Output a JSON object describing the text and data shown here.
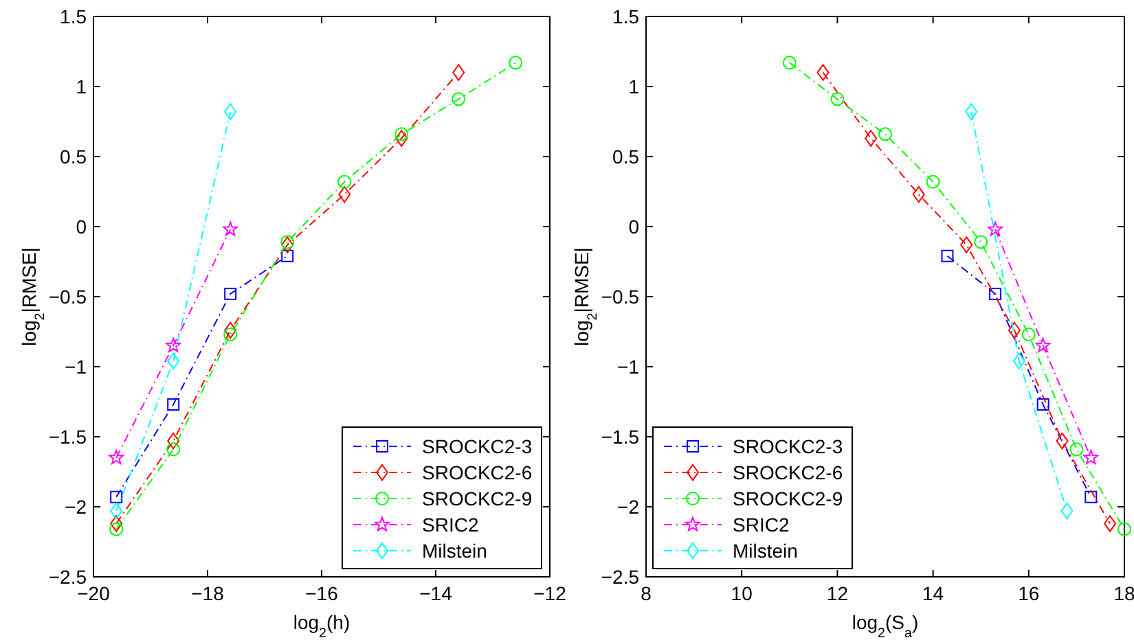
{
  "chart_data": [
    {
      "type": "line",
      "xlabel": "log$_{2}$(h)",
      "ylabel": "log$_{2}$|RMSE|",
      "xlim": [
        -20,
        -12
      ],
      "xticks": [
        -20,
        -18,
        -16,
        -14,
        -12
      ],
      "ylim": [
        -2.5,
        1.5
      ],
      "yticks": [
        -2.5,
        -2,
        -1.5,
        -1,
        -0.5,
        0,
        0.5,
        1,
        1.5
      ],
      "grid": false,
      "legend": "bottom right",
      "line_style": "dashed",
      "series": [
        {
          "name": "SROCKC2-3",
          "color": "#0000ff",
          "marker": "square",
          "x": [
            -19.6,
            -18.6,
            -17.6,
            -16.6
          ],
          "values": [
            -1.93,
            -1.27,
            -0.48,
            -0.21
          ]
        },
        {
          "name": "SROCKC2-6",
          "color": "#ff0000",
          "marker": "diamond",
          "x": [
            -19.6,
            -18.6,
            -17.6,
            -16.6,
            -15.6,
            -14.6,
            -13.6
          ],
          "values": [
            -2.12,
            -1.53,
            -0.74,
            -0.13,
            0.23,
            0.63,
            1.1
          ]
        },
        {
          "name": "SROCKC2-9",
          "color": "#00ff00",
          "marker": "circle",
          "x": [
            -19.6,
            -18.6,
            -17.6,
            -16.6,
            -15.6,
            -14.6,
            -13.6,
            -12.6
          ],
          "values": [
            -2.16,
            -1.59,
            -0.77,
            -0.11,
            0.32,
            0.66,
            0.91,
            1.17
          ]
        },
        {
          "name": "SRIC2",
          "color": "#ff00ff",
          "marker": "star",
          "x": [
            -19.6,
            -18.6,
            -17.6
          ],
          "values": [
            -1.65,
            -0.85,
            -0.02
          ]
        },
        {
          "name": "Milstein",
          "color": "#00ffff",
          "marker": "diamond",
          "x": [
            -19.6,
            -18.6,
            -17.6
          ],
          "values": [
            -2.03,
            -0.96,
            0.82
          ]
        }
      ]
    },
    {
      "type": "line",
      "xlabel": "log$_{2}$(S$_{a}$)",
      "ylabel": "log$_{2}$|RMSE|",
      "xlim": [
        8,
        18
      ],
      "xticks": [
        8,
        10,
        12,
        14,
        16,
        18
      ],
      "ylim": [
        -2.5,
        1.5
      ],
      "yticks": [
        -2.5,
        -2,
        -1.5,
        -1,
        -0.5,
        0,
        0.5,
        1,
        1.5
      ],
      "grid": false,
      "legend": "bottom left",
      "line_style": "dashed",
      "series": [
        {
          "name": "SROCKC2-3",
          "color": "#0000ff",
          "marker": "square",
          "x": [
            14.3,
            15.3,
            16.3,
            17.3
          ],
          "values": [
            -0.21,
            -0.48,
            -1.27,
            -1.93
          ]
        },
        {
          "name": "SROCKC2-6",
          "color": "#ff0000",
          "marker": "diamond",
          "x": [
            11.7,
            12.7,
            13.7,
            14.7,
            15.7,
            16.7,
            17.7
          ],
          "values": [
            1.1,
            0.63,
            0.23,
            -0.13,
            -0.74,
            -1.53,
            -2.12
          ]
        },
        {
          "name": "SROCKC2-9",
          "color": "#00ff00",
          "marker": "circle",
          "x": [
            11,
            12,
            13,
            14,
            15,
            16,
            17,
            18
          ],
          "values": [
            1.17,
            0.91,
            0.66,
            0.32,
            -0.11,
            -0.77,
            -1.59,
            -2.16
          ]
        },
        {
          "name": "SRIC2",
          "color": "#ff00ff",
          "marker": "star",
          "x": [
            15.3,
            16.3,
            17.3
          ],
          "values": [
            -0.02,
            -0.85,
            -1.65
          ]
        },
        {
          "name": "Milstein",
          "color": "#00ffff",
          "marker": "diamond",
          "x": [
            14.8,
            15.8,
            16.8
          ],
          "values": [
            0.82,
            -0.96,
            -2.03
          ]
        }
      ]
    }
  ]
}
